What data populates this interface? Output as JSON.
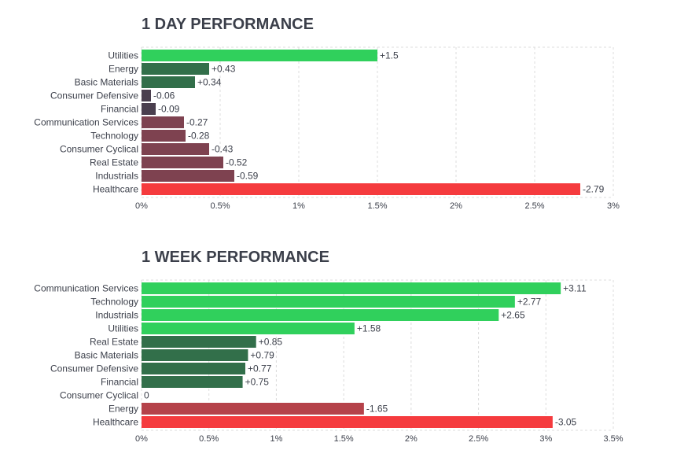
{
  "colors": {
    "strong_green": "#30d05c",
    "dark_green": "#326f4a",
    "dark_neutral": "#4a3f4e",
    "muted_red": "#7e4250",
    "strong_red": "#f53b3e",
    "grid": "#dcdcdc",
    "label": "#3b3f4a"
  },
  "chart_data": [
    {
      "type": "bar",
      "orientation": "horizontal",
      "title": "1 DAY PERFORMANCE",
      "categories": [
        "Utilities",
        "Energy",
        "Basic Materials",
        "Consumer Defensive",
        "Financial",
        "Communication Services",
        "Technology",
        "Consumer Cyclical",
        "Real Estate",
        "Industrials",
        "Healthcare"
      ],
      "values": [
        1.5,
        0.43,
        0.34,
        -0.06,
        -0.09,
        -0.27,
        -0.28,
        -0.43,
        -0.52,
        -0.59,
        -2.79
      ],
      "value_labels": [
        "+1.5",
        "+0.43",
        "+0.34",
        "-0.06",
        "-0.09",
        "-0.27",
        "-0.28",
        "-0.43",
        "-0.52",
        "-0.59",
        "-2.79"
      ],
      "bar_length": "absolute value",
      "xlim": [
        0,
        3
      ],
      "xticks": [
        "0%",
        "0.5%",
        "1%",
        "1.5%",
        "2%",
        "2.5%",
        "3%"
      ],
      "grid": "vertical dashed"
    },
    {
      "type": "bar",
      "orientation": "horizontal",
      "title": "1 WEEK PERFORMANCE",
      "categories": [
        "Communication Services",
        "Technology",
        "Industrials",
        "Utilities",
        "Real Estate",
        "Basic Materials",
        "Consumer Defensive",
        "Financial",
        "Consumer Cyclical",
        "Energy",
        "Healthcare"
      ],
      "values": [
        3.11,
        2.77,
        2.65,
        1.58,
        0.85,
        0.79,
        0.77,
        0.75,
        0,
        -1.65,
        -3.05
      ],
      "value_labels": [
        "+3.11",
        "+2.77",
        "+2.65",
        "+1.58",
        "+0.85",
        "+0.79",
        "+0.77",
        "+0.75",
        "0",
        "-1.65",
        "-3.05"
      ],
      "bar_length": "absolute value",
      "xlim": [
        0,
        3.5
      ],
      "xticks": [
        "0%",
        "0.5%",
        "1%",
        "1.5%",
        "2%",
        "2.5%",
        "3%",
        "3.5%"
      ],
      "grid": "vertical dashed"
    }
  ]
}
